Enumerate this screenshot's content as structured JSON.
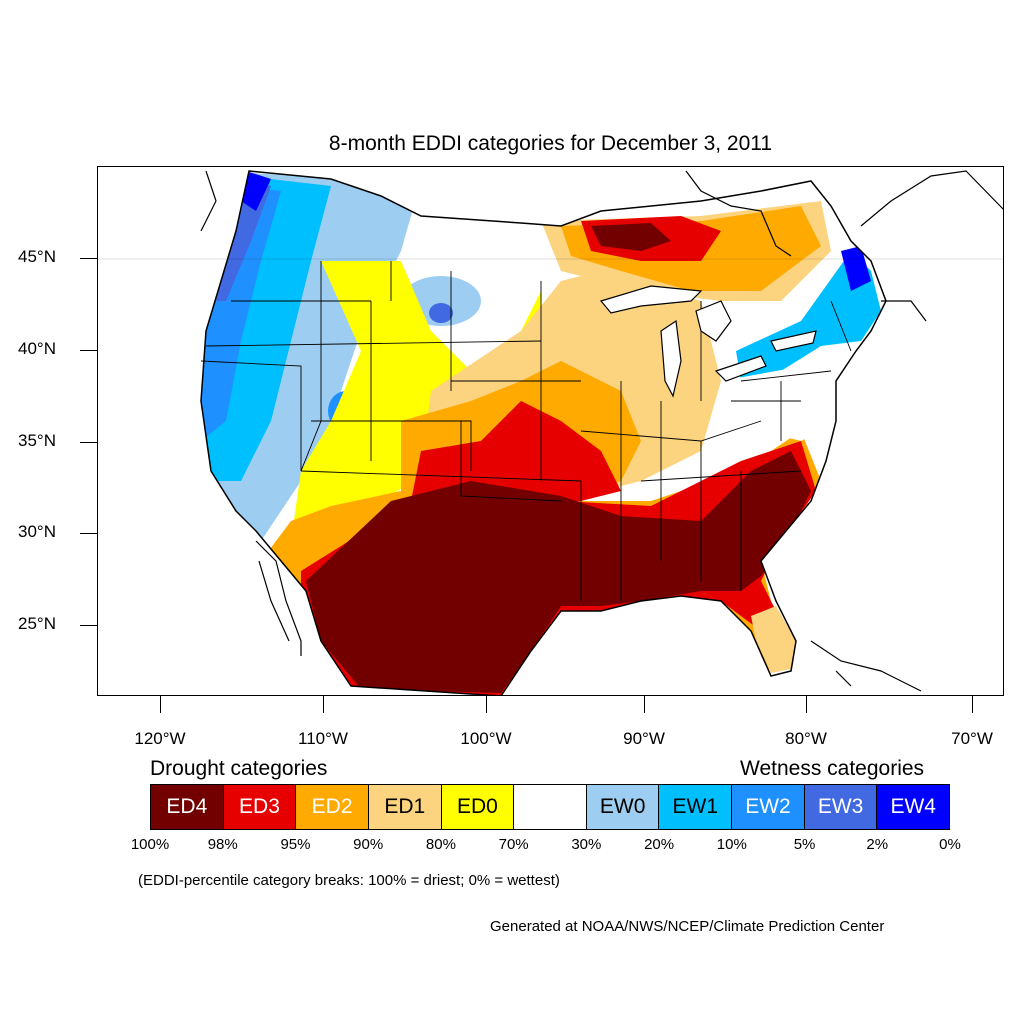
{
  "title": "8-month EDDI categories for December 3, 2011",
  "latitude_labels": [
    "45°N",
    "40°N",
    "35°N",
    "30°N",
    "25°N"
  ],
  "longitude_labels": [
    "120°W",
    "110°W",
    "100°W",
    "90°W",
    "80°W",
    "70°W"
  ],
  "legend": {
    "drought_heading": "Drought categories",
    "wetness_heading": "Wetness categories",
    "categories": [
      {
        "label": "ED4",
        "color": "#730000",
        "text_color": "#ffffff"
      },
      {
        "label": "ED3",
        "color": "#e60000",
        "text_color": "#ffffff"
      },
      {
        "label": "ED2",
        "color": "#ffaa00",
        "text_color": "#ffffff"
      },
      {
        "label": "ED1",
        "color": "#fcd37f",
        "text_color": "#000000"
      },
      {
        "label": "ED0",
        "color": "#ffff00",
        "text_color": "#000000"
      },
      {
        "label": "",
        "color": "#ffffff",
        "text_color": "#000000"
      },
      {
        "label": "EW0",
        "color": "#9dcdf0",
        "text_color": "#000000"
      },
      {
        "label": "EW1",
        "color": "#00bfff",
        "text_color": "#000000"
      },
      {
        "label": "EW2",
        "color": "#1e90ff",
        "text_color": "#ffffff"
      },
      {
        "label": "EW3",
        "color": "#4169e1",
        "text_color": "#ffffff"
      },
      {
        "label": "EW4",
        "color": "#0000ff",
        "text_color": "#ffffff"
      }
    ],
    "percent_breaks": [
      "100%",
      "98%",
      "95%",
      "90%",
      "80%",
      "70%",
      "30%",
      "20%",
      "10%",
      "5%",
      "2%",
      "0%"
    ]
  },
  "note": "(EDDI-percentile category breaks: 100% = driest; 0% = wettest)",
  "credit": "Generated at NOAA/NWS/NCEP/Climate Prediction Center"
}
